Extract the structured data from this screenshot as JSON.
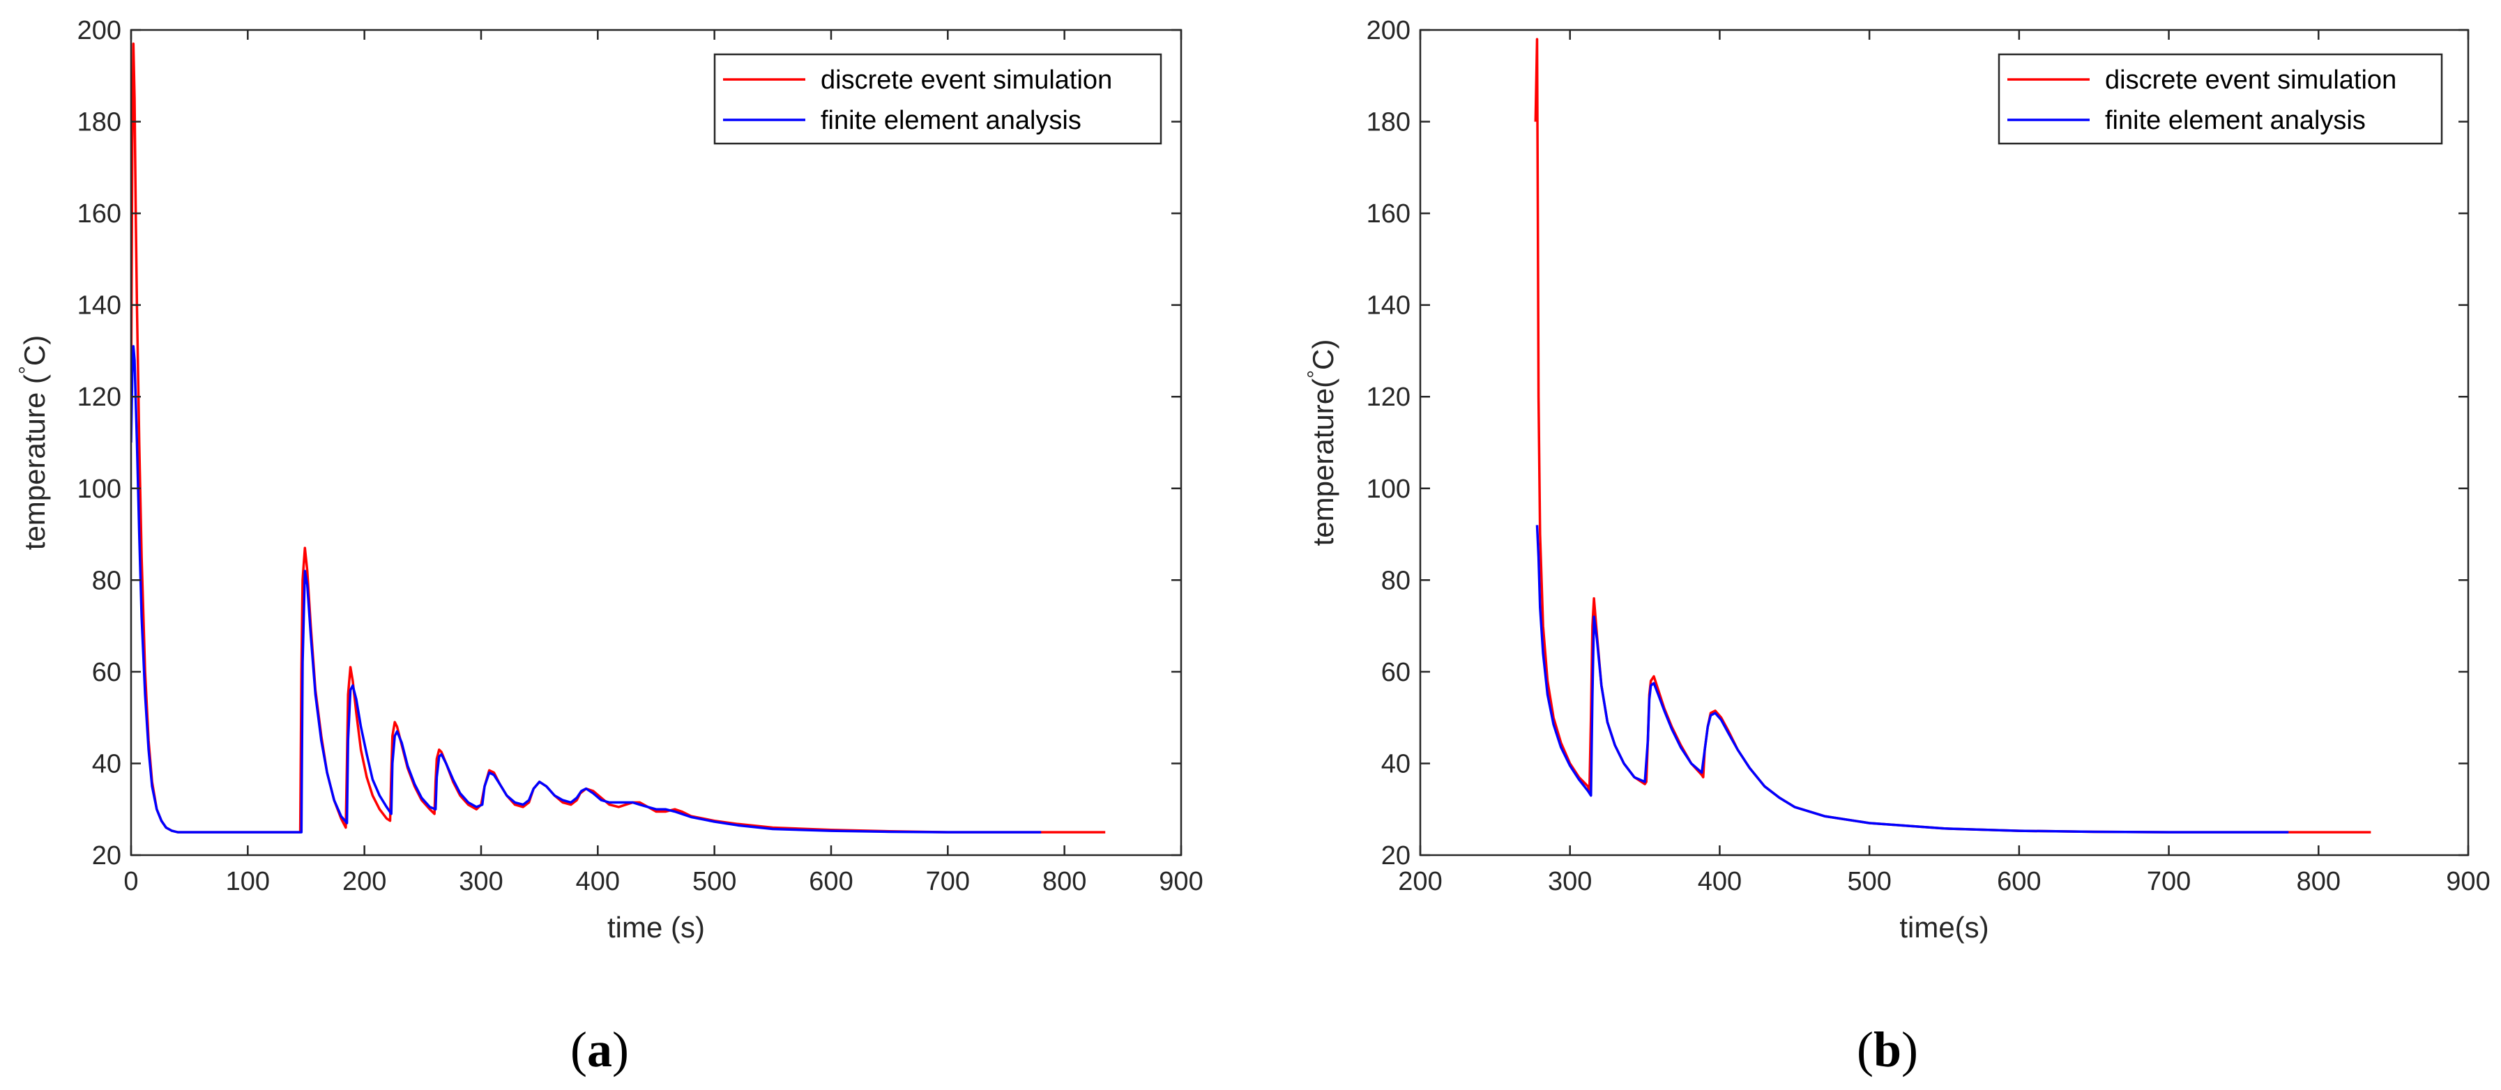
{
  "chart_data": [
    {
      "type": "line",
      "panel_label": {
        "open": "(",
        "letter": "a",
        "close": ")"
      },
      "xlabel": "time (s)",
      "ylabel_prefix": "temperature (",
      "ylabel_degree": "°",
      "ylabel_suffix": "C)",
      "xlim": [
        0,
        900
      ],
      "ylim": [
        20,
        200
      ],
      "xticks": [
        "0",
        "100",
        "200",
        "300",
        "400",
        "500",
        "600",
        "700",
        "800",
        "900"
      ],
      "yticks": [
        "20",
        "40",
        "60",
        "80",
        "100",
        "120",
        "140",
        "160",
        "180",
        "200"
      ],
      "grid": false,
      "legend_position": "top-right",
      "series": [
        {
          "name": "discrete event simulation",
          "color": "#ff0000",
          "x": [
            0,
            1,
            2,
            3,
            4,
            5,
            7,
            9,
            12,
            15,
            18,
            22,
            26,
            30,
            35,
            40,
            50,
            60,
            80,
            100,
            120,
            145,
            146,
            147,
            149,
            151,
            154,
            158,
            163,
            168,
            174,
            180,
            184,
            185,
            186,
            188,
            190,
            193,
            197,
            202,
            207,
            213,
            219,
            222,
            223,
            224,
            226,
            228,
            232,
            237,
            243,
            249,
            256,
            260,
            261,
            262,
            264,
            266,
            270,
            276,
            282,
            289,
            296,
            300,
            303,
            307,
            311,
            316,
            322,
            329,
            336,
            341,
            345,
            350,
            356,
            363,
            370,
            377,
            382,
            385,
            390,
            396,
            403,
            410,
            418,
            424,
            430,
            436,
            443,
            450,
            458,
            466,
            472,
            480,
            490,
            500,
            520,
            550,
            600,
            650,
            700,
            750,
            800,
            835
          ],
          "y": [
            120,
            175,
            197,
            185,
            160,
            140,
            110,
            85,
            60,
            45,
            36,
            30,
            27.5,
            26,
            25.3,
            25,
            25,
            25,
            25,
            25,
            25,
            25,
            60,
            80,
            87,
            82,
            70,
            56,
            46,
            38,
            32,
            28,
            26,
            40,
            55,
            61,
            58,
            51,
            43,
            37,
            33,
            30,
            28,
            27.5,
            38,
            46,
            49,
            48,
            44,
            39,
            35,
            32,
            30,
            29,
            36,
            41,
            43,
            42.5,
            40,
            36,
            33,
            31,
            30,
            31,
            35,
            38.5,
            38,
            35.5,
            33,
            31,
            30.5,
            31.5,
            34.5,
            36,
            35,
            33,
            31.5,
            31,
            32,
            33.5,
            34.5,
            34,
            32.5,
            31,
            30.5,
            31,
            31.5,
            31.5,
            30.5,
            29.5,
            29.5,
            30,
            29.5,
            28.5,
            28,
            27.5,
            26.8,
            26,
            25.5,
            25.2,
            25,
            25,
            25,
            25
          ]
        },
        {
          "name": "finite element analysis",
          "color": "#0000ff",
          "x": [
            0,
            1,
            2,
            3,
            5,
            7,
            9,
            12,
            15,
            18,
            22,
            26,
            30,
            35,
            40,
            50,
            60,
            80,
            100,
            120,
            146,
            147,
            149,
            151,
            154,
            158,
            163,
            168,
            174,
            180,
            185,
            186,
            188,
            190,
            193,
            197,
            202,
            207,
            213,
            219,
            223,
            224,
            226,
            228,
            232,
            237,
            243,
            249,
            256,
            261,
            262,
            264,
            266,
            270,
            276,
            282,
            289,
            296,
            301,
            303,
            307,
            311,
            316,
            322,
            329,
            336,
            341,
            345,
            350,
            356,
            363,
            370,
            377,
            382,
            386,
            390,
            396,
            403,
            410,
            418,
            424,
            430,
            436,
            443,
            450,
            458,
            466,
            472,
            480,
            490,
            500,
            520,
            550,
            600,
            650,
            700,
            750,
            780
          ],
          "y": [
            110,
            125,
            131,
            128,
            110,
            90,
            72,
            55,
            43,
            35,
            30,
            27.5,
            26,
            25.3,
            25,
            25,
            25,
            25,
            25,
            25,
            25,
            62,
            82,
            79,
            68,
            55,
            45,
            38,
            32,
            28.5,
            27,
            45,
            56,
            57,
            54,
            48,
            42,
            36.5,
            33,
            30.5,
            29,
            40,
            46,
            47,
            44.5,
            39.5,
            35.5,
            32.5,
            30.5,
            30,
            37,
            41.5,
            42,
            40,
            36.5,
            33.5,
            31.5,
            30.5,
            31,
            35,
            38,
            37.5,
            35.5,
            33,
            31.5,
            31,
            32,
            34.5,
            36,
            35,
            33,
            32,
            31.5,
            32.5,
            34,
            34.5,
            33.5,
            32,
            31.5,
            31.5,
            31.5,
            31.5,
            31,
            30.5,
            30,
            30,
            29.5,
            29,
            28.3,
            27.8,
            27.3,
            26.5,
            25.7,
            25.3,
            25.1,
            25,
            25,
            25
          ]
        }
      ]
    },
    {
      "type": "line",
      "panel_label": {
        "open": "(",
        "letter": "b",
        "close": ")"
      },
      "xlabel": "time(s)",
      "ylabel_prefix": "temperature(",
      "ylabel_degree": "°",
      "ylabel_suffix": "C)",
      "xlim": [
        200,
        900
      ],
      "ylim": [
        20,
        200
      ],
      "xticks": [
        "200",
        "300",
        "400",
        "500",
        "600",
        "700",
        "800",
        "900"
      ],
      "yticks": [
        "20",
        "40",
        "60",
        "80",
        "100",
        "120",
        "140",
        "160",
        "180",
        "200"
      ],
      "grid": false,
      "legend_position": "top-right",
      "series": [
        {
          "name": "discrete event simulation",
          "color": "#ff0000",
          "x": [
            277,
            278,
            278.5,
            279,
            280,
            282,
            285,
            289,
            294,
            300,
            306,
            312,
            313,
            314,
            315,
            316,
            318,
            321,
            325,
            330,
            336,
            343,
            350,
            351,
            352,
            353,
            354,
            356,
            359,
            363,
            368,
            374,
            381,
            388,
            389,
            390,
            392,
            394,
            397,
            401,
            406,
            412,
            420,
            430,
            440,
            450,
            470,
            500,
            550,
            600,
            650,
            700,
            750,
            800,
            835
          ],
          "y": [
            180,
            198,
            160,
            120,
            90,
            70,
            58,
            50,
            44.5,
            40,
            37,
            35,
            34,
            50,
            70,
            76,
            68,
            57,
            49,
            44,
            40,
            37,
            35.5,
            36,
            45,
            55,
            58,
            59,
            56,
            52,
            48,
            44,
            40,
            37.5,
            37,
            43,
            48,
            51,
            51.5,
            50,
            47,
            43,
            39,
            35,
            32.5,
            30.5,
            28.5,
            27,
            25.8,
            25.3,
            25.1,
            25,
            25,
            25,
            25
          ]
        },
        {
          "name": "finite element analysis",
          "color": "#0000ff",
          "x": [
            278,
            279,
            280,
            282,
            285,
            289,
            294,
            300,
            306,
            312,
            314,
            315,
            316,
            318,
            321,
            325,
            330,
            336,
            343,
            350,
            352,
            353,
            354,
            356,
            359,
            363,
            368,
            374,
            381,
            388,
            390,
            392,
            394,
            397,
            401,
            406,
            412,
            420,
            430,
            440,
            450,
            470,
            500,
            550,
            600,
            650,
            700,
            750,
            780
          ],
          "y": [
            92,
            85,
            74,
            64,
            55,
            48.5,
            43.5,
            39.5,
            36.5,
            34,
            33,
            55,
            72,
            67,
            57,
            49,
            44,
            40,
            37,
            36,
            45,
            54,
            57,
            57.5,
            55,
            51.5,
            47.5,
            43.5,
            40,
            38,
            43,
            48,
            50.5,
            51,
            49.5,
            46.5,
            43,
            39,
            35,
            32.5,
            30.5,
            28.5,
            27,
            25.8,
            25.3,
            25.1,
            25,
            25,
            25
          ]
        }
      ]
    }
  ]
}
